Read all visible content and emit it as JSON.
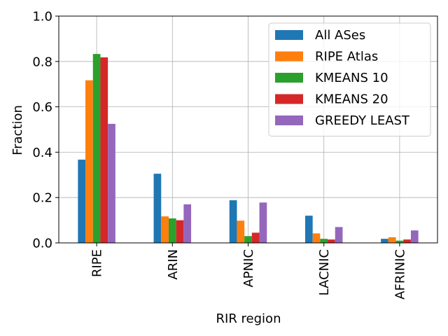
{
  "chart_data": {
    "type": "bar",
    "categories": [
      "RIPE",
      "ARIN",
      "APNIC",
      "LACNIC",
      "AFRINIC"
    ],
    "series": [
      {
        "name": "All ASes",
        "color": "#1f77b4",
        "values": [
          0.367,
          0.305,
          0.188,
          0.12,
          0.018
        ]
      },
      {
        "name": "RIPE Atlas",
        "color": "#ff7f0e",
        "values": [
          0.717,
          0.117,
          0.098,
          0.042,
          0.025
        ]
      },
      {
        "name": "KMEANS 10",
        "color": "#2ca02c",
        "values": [
          0.833,
          0.108,
          0.03,
          0.018,
          0.01
        ]
      },
      {
        "name": "KMEANS 20",
        "color": "#d62728",
        "values": [
          0.818,
          0.1,
          0.045,
          0.015,
          0.015
        ]
      },
      {
        "name": "GREEDY LEAST",
        "color": "#9467bd",
        "values": [
          0.525,
          0.17,
          0.178,
          0.07,
          0.055
        ]
      }
    ],
    "xlabel": "RIR region",
    "ylabel": "Fraction",
    "ylim": [
      0.0,
      1.0
    ],
    "yticks": [
      "0.0",
      "0.2",
      "0.4",
      "0.6",
      "0.8",
      "1.0"
    ],
    "grid": true,
    "legend": "top-right"
  }
}
